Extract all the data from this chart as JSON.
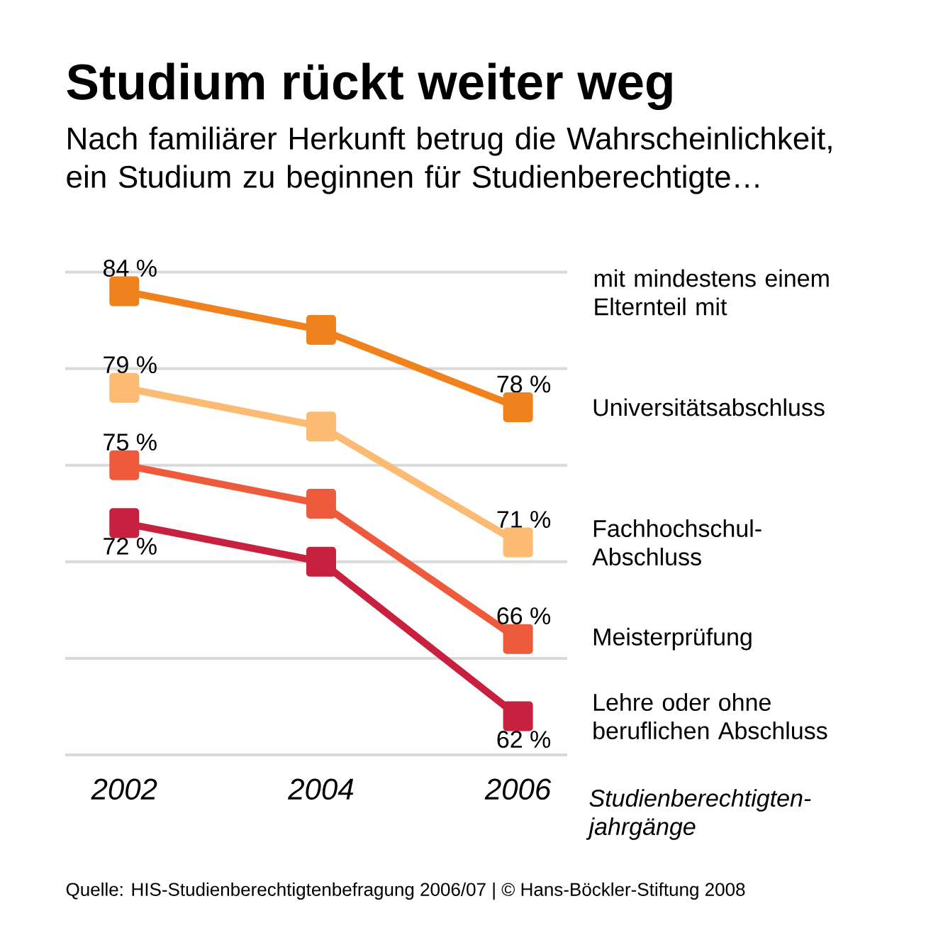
{
  "chart_data": {
    "type": "line",
    "title": "Studium rückt weiter weg",
    "subtitle": "Nach familiärer Herkunft betrug die Wahrscheinlichkeit, ein Studium zu beginnen für Studienberechtigte…",
    "xlabel": "Studienberechtigten-jahrgänge",
    "legend_title": "mit mindestens einem Elternteil mit",
    "categories": [
      "2002",
      "2004",
      "2006"
    ],
    "series": [
      {
        "name": "Universitätsabschluss",
        "color": "#f0821e",
        "values": [
          84,
          82,
          78
        ],
        "value_labels": [
          "84 %",
          null,
          "78 %"
        ]
      },
      {
        "name": "Fachhochschul-Abschluss",
        "color": "#fbbb73",
        "values": [
          79,
          77,
          71
        ],
        "value_labels": [
          "79 %",
          null,
          "71 %"
        ]
      },
      {
        "name": "Meisterprüfung",
        "color": "#ee5a3c",
        "values": [
          75,
          73,
          66
        ],
        "value_labels": [
          "75 %",
          null,
          "66 %"
        ]
      },
      {
        "name": "Lehre oder ohne beruflichen Abschluss",
        "color": "#c8203f",
        "values": [
          72,
          70,
          62
        ],
        "value_labels": [
          "72 %",
          null,
          "62 %"
        ]
      }
    ],
    "ylim": [
      60,
      85
    ],
    "yticks": [
      {
        "value": 60,
        "label": null
      },
      {
        "value": 65,
        "label": null
      },
      {
        "value": 70,
        "label": null
      },
      {
        "value": 75,
        "label": null
      },
      {
        "value": 80,
        "label": null
      },
      {
        "value": 85,
        "label": null
      }
    ],
    "tick_labels": "x",
    "grid": "y",
    "legend": "right",
    "marker": "square",
    "line_style": "solid",
    "annotations": [
      "Quelle: HIS-Studienberechtigtenbefragung 2006/07 | © Hans-Böckler-Stiftung 2008"
    ]
  }
}
